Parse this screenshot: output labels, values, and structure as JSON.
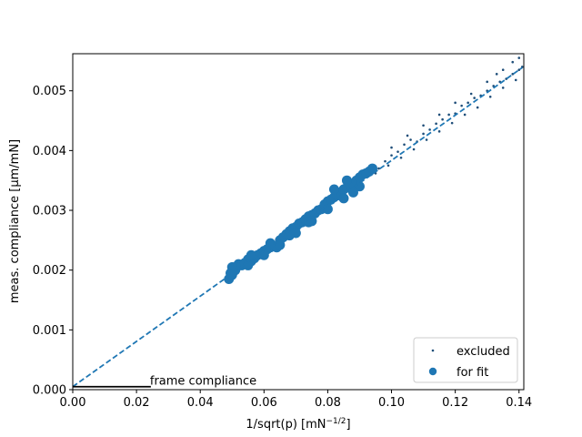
{
  "chart_data": {
    "type": "scatter",
    "title": "",
    "xlabel": "1/sqrt(p) [mN",
    "xlabel_sup": "−1/2",
    "xlabel_end": "]",
    "ylabel": "meas. compliance [µm/mN]",
    "xlim": [
      0.0,
      0.1415
    ],
    "ylim": [
      0.0,
      0.00562
    ],
    "grid": false,
    "legend_position": "lower-right",
    "xticks": [
      0.0,
      0.02,
      0.04,
      0.06,
      0.08,
      0.1,
      0.12,
      0.14
    ],
    "xtick_labels": [
      "0.00",
      "0.02",
      "0.04",
      "0.06",
      "0.08",
      "0.10",
      "0.12",
      "0.14"
    ],
    "yticks": [
      0.0,
      0.001,
      0.002,
      0.003,
      0.004,
      0.005
    ],
    "ytick_labels": [
      "0.000",
      "0.001",
      "0.002",
      "0.003",
      "0.004",
      "0.005"
    ],
    "fit_line": {
      "intercept": 5e-05,
      "slope": 0.03785,
      "x_range": [
        0.0,
        0.141
      ],
      "color": "#1f77b4"
    },
    "frame_compliance": {
      "label": "frame compliance",
      "value": 5e-05,
      "x_range": [
        0.0,
        0.0245
      ],
      "color": "#000000"
    },
    "series": [
      {
        "name": "excluded",
        "color": "#1f4e79",
        "marker": "small-dot",
        "points": [
          [
            0.09,
            0.00352
          ],
          [
            0.092,
            0.00365
          ],
          [
            0.094,
            0.00372
          ],
          [
            0.096,
            0.0037
          ],
          [
            0.098,
            0.00382
          ],
          [
            0.1,
            0.00392
          ],
          [
            0.102,
            0.00398
          ],
          [
            0.104,
            0.0041
          ],
          [
            0.106,
            0.00418
          ],
          [
            0.108,
            0.00415
          ],
          [
            0.11,
            0.00428
          ],
          [
            0.112,
            0.00435
          ],
          [
            0.114,
            0.00445
          ],
          [
            0.116,
            0.00452
          ],
          [
            0.118,
            0.0046
          ],
          [
            0.12,
            0.00462
          ],
          [
            0.122,
            0.00475
          ],
          [
            0.124,
            0.0048
          ],
          [
            0.126,
            0.00488
          ],
          [
            0.128,
            0.00492
          ],
          [
            0.13,
            0.005
          ],
          [
            0.132,
            0.00508
          ],
          [
            0.134,
            0.00515
          ],
          [
            0.136,
            0.0052
          ],
          [
            0.138,
            0.00528
          ],
          [
            0.14,
            0.00535
          ],
          [
            0.141,
            0.0054
          ],
          [
            0.095,
            0.00362
          ],
          [
            0.099,
            0.00375
          ],
          [
            0.103,
            0.00388
          ],
          [
            0.107,
            0.00402
          ],
          [
            0.111,
            0.00418
          ],
          [
            0.115,
            0.00432
          ],
          [
            0.119,
            0.00446
          ],
          [
            0.123,
            0.0046
          ],
          [
            0.127,
            0.00472
          ],
          [
            0.131,
            0.0049
          ],
          [
            0.135,
            0.00505
          ],
          [
            0.139,
            0.00518
          ],
          [
            0.1,
            0.00405
          ],
          [
            0.105,
            0.00425
          ],
          [
            0.11,
            0.00442
          ],
          [
            0.115,
            0.0046
          ],
          [
            0.12,
            0.0048
          ],
          [
            0.125,
            0.00495
          ],
          [
            0.13,
            0.00515
          ],
          [
            0.135,
            0.00535
          ],
          [
            0.14,
            0.00555
          ],
          [
            0.138,
            0.00548
          ],
          [
            0.133,
            0.00528
          ]
        ]
      },
      {
        "name": "for fit",
        "color": "#1f77b4",
        "marker": "large-dot",
        "points": [
          [
            0.049,
            0.00185
          ],
          [
            0.0495,
            0.00195
          ],
          [
            0.05,
            0.00205
          ],
          [
            0.051,
            0.002
          ],
          [
            0.052,
            0.0021
          ],
          [
            0.053,
            0.00208
          ],
          [
            0.054,
            0.00212
          ],
          [
            0.055,
            0.00218
          ],
          [
            0.056,
            0.00215
          ],
          [
            0.057,
            0.0022
          ],
          [
            0.058,
            0.00225
          ],
          [
            0.059,
            0.00228
          ],
          [
            0.06,
            0.00232
          ],
          [
            0.061,
            0.00235
          ],
          [
            0.062,
            0.00238
          ],
          [
            0.063,
            0.0024
          ],
          [
            0.064,
            0.00238
          ],
          [
            0.065,
            0.0025
          ],
          [
            0.066,
            0.00255
          ],
          [
            0.067,
            0.0026
          ],
          [
            0.068,
            0.00265
          ],
          [
            0.069,
            0.0027
          ],
          [
            0.07,
            0.00272
          ],
          [
            0.071,
            0.00278
          ],
          [
            0.072,
            0.0028
          ],
          [
            0.073,
            0.00285
          ],
          [
            0.074,
            0.0029
          ],
          [
            0.075,
            0.00292
          ],
          [
            0.076,
            0.00295
          ],
          [
            0.077,
            0.003
          ],
          [
            0.078,
            0.00302
          ],
          [
            0.079,
            0.0031
          ],
          [
            0.08,
            0.00315
          ],
          [
            0.081,
            0.00318
          ],
          [
            0.082,
            0.00322
          ],
          [
            0.083,
            0.00325
          ],
          [
            0.084,
            0.0033
          ],
          [
            0.085,
            0.00335
          ],
          [
            0.086,
            0.00338
          ],
          [
            0.087,
            0.00342
          ],
          [
            0.088,
            0.00345
          ],
          [
            0.089,
            0.0035
          ],
          [
            0.09,
            0.00355
          ],
          [
            0.091,
            0.0036
          ],
          [
            0.092,
            0.00362
          ],
          [
            0.093,
            0.00365
          ],
          [
            0.094,
            0.0037
          ],
          [
            0.05,
            0.00192
          ],
          [
            0.055,
            0.00208
          ],
          [
            0.06,
            0.00225
          ],
          [
            0.065,
            0.00242
          ],
          [
            0.07,
            0.00262
          ],
          [
            0.075,
            0.00282
          ],
          [
            0.08,
            0.00302
          ],
          [
            0.085,
            0.0032
          ],
          [
            0.09,
            0.0034
          ],
          [
            0.056,
            0.00225
          ],
          [
            0.062,
            0.00245
          ],
          [
            0.068,
            0.00258
          ],
          [
            0.074,
            0.0028
          ],
          [
            0.082,
            0.00335
          ],
          [
            0.086,
            0.0035
          ],
          [
            0.088,
            0.0033
          ]
        ]
      }
    ]
  }
}
